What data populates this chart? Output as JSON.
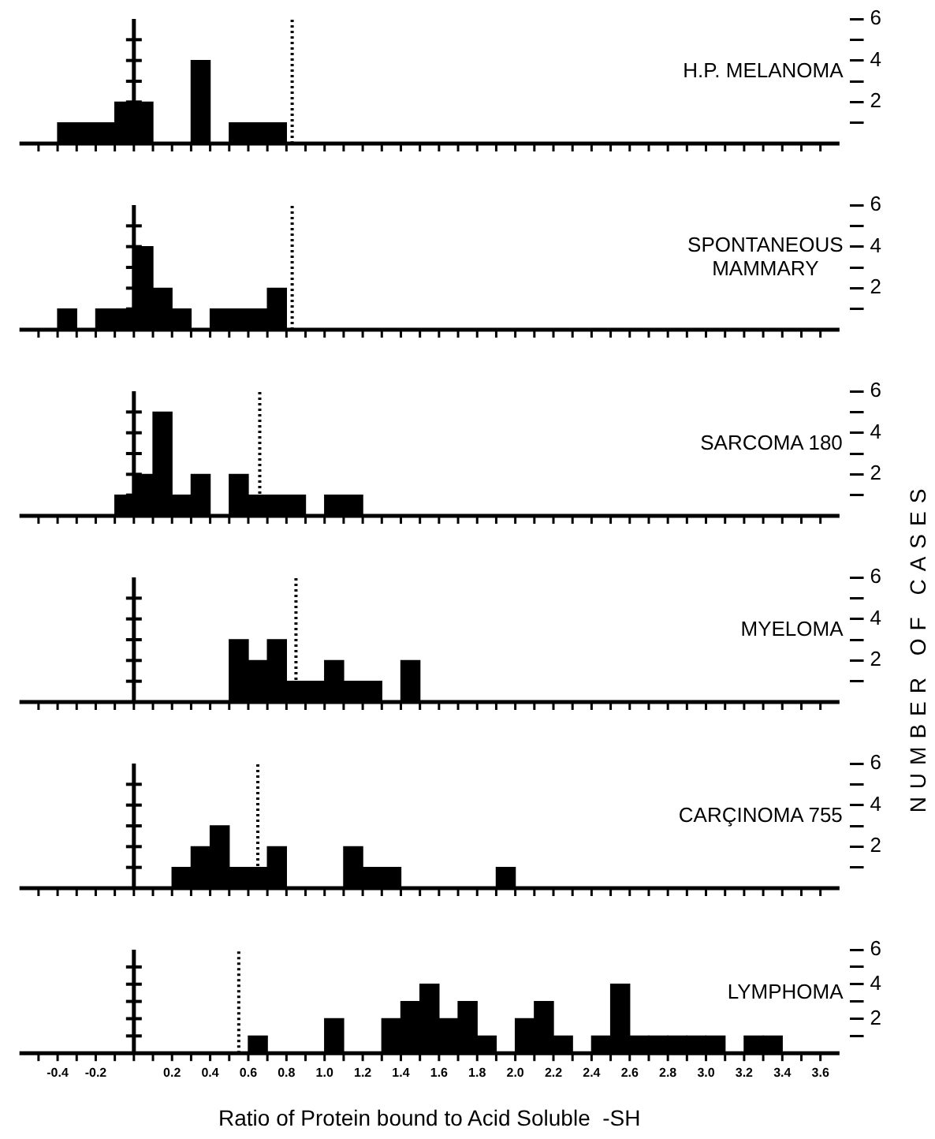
{
  "chart_data": [
    {
      "type": "histogram",
      "title": "H.P. MELANOMA",
      "bins": [
        -0.4,
        -0.3,
        -0.2,
        -0.1,
        0,
        0.1,
        0.2,
        0.3,
        0.4,
        0.5,
        0.6,
        0.7,
        0.8
      ],
      "values": [
        1,
        1,
        1,
        2,
        2,
        0,
        0,
        4,
        0,
        1,
        1,
        1
      ],
      "color": "#000000",
      "xlim": [
        -0.6,
        3.7
      ],
      "ylim": [
        0,
        6
      ],
      "xticks": [
        {
          "value": -0.5,
          "label": null
        },
        -0.4,
        {
          "value": -0.3,
          "label": null
        },
        -0.2,
        {
          "value": -0.1,
          "label": null
        },
        {
          "value": 0,
          "label": null
        },
        {
          "value": 0.1,
          "label": null
        },
        0.2,
        {
          "value": 0.3,
          "label": null
        },
        0.4,
        {
          "value": 0.5,
          "label": null
        },
        0.6,
        {
          "value": 0.7,
          "label": null
        },
        0.8,
        {
          "value": 0.9,
          "label": null
        },
        1,
        {
          "value": 1.1,
          "label": null
        },
        1.2,
        {
          "value": 1.3,
          "label": null
        },
        1.4,
        {
          "value": 1.5,
          "label": null
        },
        1.6,
        {
          "value": 1.7,
          "label": null
        },
        1.8,
        {
          "value": 1.9,
          "label": null
        },
        2,
        {
          "value": 2.1,
          "label": null
        },
        2.2,
        {
          "value": 2.3,
          "label": null
        },
        2.4,
        {
          "value": 2.5,
          "label": null
        },
        2.6,
        {
          "value": 2.7,
          "label": null
        },
        2.8,
        {
          "value": 2.9,
          "label": null
        },
        3,
        {
          "value": 3.1,
          "label": null
        },
        3.2,
        {
          "value": 3.3,
          "label": null
        },
        3.4,
        {
          "value": 3.5,
          "label": null
        },
        3.6
      ],
      "yticks": [
        {
          "value": 1,
          "label": null
        },
        2,
        {
          "value": 3,
          "label": null
        },
        4,
        {
          "value": 5,
          "label": null
        },
        6
      ],
      "tick_labels": "y",
      "grid": false,
      "legend": false,
      "ref_lines": [
        {
          "axis": "x",
          "value": 0,
          "line_style": "solid"
        },
        {
          "axis": "x",
          "value": 0.83,
          "line_style": "dotted"
        }
      ]
    },
    {
      "type": "histogram",
      "title": "SPONTANEOUS MAMMARY",
      "bins": [
        -0.4,
        -0.3,
        -0.2,
        -0.1,
        0,
        0.1,
        0.2,
        0.3,
        0.4,
        0.5,
        0.6,
        0.7,
        0.8
      ],
      "values": [
        1,
        0,
        1,
        1,
        4,
        2,
        1,
        0,
        1,
        1,
        1,
        2
      ],
      "color": "#000000",
      "xlim": [
        -0.6,
        3.7
      ],
      "ylim": [
        0,
        6
      ],
      "xticks": [
        {
          "value": -0.5,
          "label": null
        },
        -0.4,
        {
          "value": -0.3,
          "label": null
        },
        -0.2,
        {
          "value": -0.1,
          "label": null
        },
        {
          "value": 0,
          "label": null
        },
        {
          "value": 0.1,
          "label": null
        },
        0.2,
        {
          "value": 0.3,
          "label": null
        },
        0.4,
        {
          "value": 0.5,
          "label": null
        },
        0.6,
        {
          "value": 0.7,
          "label": null
        },
        0.8,
        {
          "value": 0.9,
          "label": null
        },
        1,
        {
          "value": 1.1,
          "label": null
        },
        1.2,
        {
          "value": 1.3,
          "label": null
        },
        1.4,
        {
          "value": 1.5,
          "label": null
        },
        1.6,
        {
          "value": 1.7,
          "label": null
        },
        1.8,
        {
          "value": 1.9,
          "label": null
        },
        2,
        {
          "value": 2.1,
          "label": null
        },
        2.2,
        {
          "value": 2.3,
          "label": null
        },
        2.4,
        {
          "value": 2.5,
          "label": null
        },
        2.6,
        {
          "value": 2.7,
          "label": null
        },
        2.8,
        {
          "value": 2.9,
          "label": null
        },
        3,
        {
          "value": 3.1,
          "label": null
        },
        3.2,
        {
          "value": 3.3,
          "label": null
        },
        3.4,
        {
          "value": 3.5,
          "label": null
        },
        3.6
      ],
      "yticks": [
        {
          "value": 1,
          "label": null
        },
        2,
        {
          "value": 3,
          "label": null
        },
        4,
        {
          "value": 5,
          "label": null
        },
        6
      ],
      "tick_labels": "y",
      "grid": false,
      "legend": false,
      "ref_lines": [
        {
          "axis": "x",
          "value": 0,
          "line_style": "solid"
        },
        {
          "axis": "x",
          "value": 0.83,
          "line_style": "dotted"
        }
      ]
    },
    {
      "type": "histogram",
      "title": "SARCOMA 180",
      "bins": [
        -0.1,
        0,
        0.1,
        0.2,
        0.3,
        0.4,
        0.5,
        0.6,
        0.7,
        0.8,
        0.9,
        1.0,
        1.1,
        1.2
      ],
      "values": [
        1,
        2,
        5,
        1,
        2,
        0,
        2,
        1,
        1,
        1,
        0,
        1,
        1
      ],
      "color": "#000000",
      "xlim": [
        -0.6,
        3.7
      ],
      "ylim": [
        0,
        6
      ],
      "xticks": [
        {
          "value": -0.5,
          "label": null
        },
        -0.4,
        {
          "value": -0.3,
          "label": null
        },
        -0.2,
        {
          "value": -0.1,
          "label": null
        },
        {
          "value": 0,
          "label": null
        },
        {
          "value": 0.1,
          "label": null
        },
        0.2,
        {
          "value": 0.3,
          "label": null
        },
        0.4,
        {
          "value": 0.5,
          "label": null
        },
        0.6,
        {
          "value": 0.7,
          "label": null
        },
        0.8,
        {
          "value": 0.9,
          "label": null
        },
        1,
        {
          "value": 1.1,
          "label": null
        },
        1.2,
        {
          "value": 1.3,
          "label": null
        },
        1.4,
        {
          "value": 1.5,
          "label": null
        },
        1.6,
        {
          "value": 1.7,
          "label": null
        },
        1.8,
        {
          "value": 1.9,
          "label": null
        },
        2,
        {
          "value": 2.1,
          "label": null
        },
        2.2,
        {
          "value": 2.3,
          "label": null
        },
        2.4,
        {
          "value": 2.5,
          "label": null
        },
        2.6,
        {
          "value": 2.7,
          "label": null
        },
        2.8,
        {
          "value": 2.9,
          "label": null
        },
        3,
        {
          "value": 3.1,
          "label": null
        },
        3.2,
        {
          "value": 3.3,
          "label": null
        },
        3.4,
        {
          "value": 3.5,
          "label": null
        },
        3.6
      ],
      "yticks": [
        {
          "value": 1,
          "label": null
        },
        2,
        {
          "value": 3,
          "label": null
        },
        4,
        {
          "value": 5,
          "label": null
        },
        6
      ],
      "tick_labels": "y",
      "grid": false,
      "legend": false,
      "ref_lines": [
        {
          "axis": "x",
          "value": 0,
          "line_style": "solid"
        },
        {
          "axis": "x",
          "value": 0.66,
          "line_style": "dotted"
        }
      ]
    },
    {
      "type": "histogram",
      "title": "MYELOMA",
      "ylabel": "NUMBER OF CASES",
      "bins": [
        0.5,
        0.6,
        0.7,
        0.8,
        0.9,
        1.0,
        1.1,
        1.2,
        1.3,
        1.4,
        1.5
      ],
      "values": [
        3,
        2,
        3,
        1,
        1,
        2,
        1,
        1,
        0,
        2
      ],
      "color": "#000000",
      "xlim": [
        -0.6,
        3.7
      ],
      "ylim": [
        0,
        6
      ],
      "xticks": [
        {
          "value": -0.5,
          "label": null
        },
        -0.4,
        {
          "value": -0.3,
          "label": null
        },
        -0.2,
        {
          "value": -0.1,
          "label": null
        },
        {
          "value": 0,
          "label": null
        },
        {
          "value": 0.1,
          "label": null
        },
        0.2,
        {
          "value": 0.3,
          "label": null
        },
        0.4,
        {
          "value": 0.5,
          "label": null
        },
        0.6,
        {
          "value": 0.7,
          "label": null
        },
        0.8,
        {
          "value": 0.9,
          "label": null
        },
        1,
        {
          "value": 1.1,
          "label": null
        },
        1.2,
        {
          "value": 1.3,
          "label": null
        },
        1.4,
        {
          "value": 1.5,
          "label": null
        },
        1.6,
        {
          "value": 1.7,
          "label": null
        },
        1.8,
        {
          "value": 1.9,
          "label": null
        },
        2,
        {
          "value": 2.1,
          "label": null
        },
        2.2,
        {
          "value": 2.3,
          "label": null
        },
        2.4,
        {
          "value": 2.5,
          "label": null
        },
        2.6,
        {
          "value": 2.7,
          "label": null
        },
        2.8,
        {
          "value": 2.9,
          "label": null
        },
        3,
        {
          "value": 3.1,
          "label": null
        },
        3.2,
        {
          "value": 3.3,
          "label": null
        },
        3.4,
        {
          "value": 3.5,
          "label": null
        },
        3.6
      ],
      "yticks": [
        {
          "value": 1,
          "label": null
        },
        2,
        {
          "value": 3,
          "label": null
        },
        4,
        {
          "value": 5,
          "label": null
        },
        6
      ],
      "tick_labels": "y",
      "grid": false,
      "legend": false,
      "ref_lines": [
        {
          "axis": "x",
          "value": 0,
          "line_style": "solid"
        },
        {
          "axis": "x",
          "value": 0.85,
          "line_style": "dotted"
        }
      ]
    },
    {
      "type": "histogram",
      "title": "CARÇINOMA 755",
      "bins": [
        0.2,
        0.3,
        0.4,
        0.5,
        0.6,
        0.7,
        0.8,
        0.9,
        1.0,
        1.1,
        1.2,
        1.3,
        1.4,
        1.5,
        1.6,
        1.7,
        1.8,
        1.9,
        2.0
      ],
      "values": [
        1,
        2,
        3,
        1,
        1,
        2,
        0,
        0,
        0,
        2,
        1,
        1,
        0,
        0,
        0,
        0,
        0,
        1
      ],
      "color": "#000000",
      "xlim": [
        -0.6,
        3.7
      ],
      "ylim": [
        0,
        6
      ],
      "xticks": [
        {
          "value": -0.5,
          "label": null
        },
        -0.4,
        {
          "value": -0.3,
          "label": null
        },
        -0.2,
        {
          "value": -0.1,
          "label": null
        },
        {
          "value": 0,
          "label": null
        },
        {
          "value": 0.1,
          "label": null
        },
        0.2,
        {
          "value": 0.3,
          "label": null
        },
        0.4,
        {
          "value": 0.5,
          "label": null
        },
        0.6,
        {
          "value": 0.7,
          "label": null
        },
        0.8,
        {
          "value": 0.9,
          "label": null
        },
        1,
        {
          "value": 1.1,
          "label": null
        },
        1.2,
        {
          "value": 1.3,
          "label": null
        },
        1.4,
        {
          "value": 1.5,
          "label": null
        },
        1.6,
        {
          "value": 1.7,
          "label": null
        },
        1.8,
        {
          "value": 1.9,
          "label": null
        },
        2,
        {
          "value": 2.1,
          "label": null
        },
        2.2,
        {
          "value": 2.3,
          "label": null
        },
        2.4,
        {
          "value": 2.5,
          "label": null
        },
        2.6,
        {
          "value": 2.7,
          "label": null
        },
        2.8,
        {
          "value": 2.9,
          "label": null
        },
        3,
        {
          "value": 3.1,
          "label": null
        },
        3.2,
        {
          "value": 3.3,
          "label": null
        },
        3.4,
        {
          "value": 3.5,
          "label": null
        },
        3.6
      ],
      "yticks": [
        {
          "value": 1,
          "label": null
        },
        2,
        {
          "value": 3,
          "label": null
        },
        4,
        {
          "value": 5,
          "label": null
        },
        6
      ],
      "tick_labels": "y",
      "grid": false,
      "legend": false,
      "ref_lines": [
        {
          "axis": "x",
          "value": 0,
          "line_style": "solid"
        },
        {
          "axis": "x",
          "value": 0.65,
          "line_style": "dotted"
        }
      ]
    },
    {
      "type": "histogram",
      "title": "LYMPHOMA",
      "xlabel": "Ratio of Protein bound to Acid Soluble  -SH",
      "bins": [
        0.6,
        0.7,
        0.8,
        0.9,
        1.0,
        1.1,
        1.2,
        1.3,
        1.4,
        1.5,
        1.6,
        1.7,
        1.8,
        1.9,
        2.0,
        2.1,
        2.2,
        2.3,
        2.4,
        2.5,
        2.6,
        2.7,
        2.8,
        2.9,
        3.0,
        3.1,
        3.2,
        3.3,
        3.4
      ],
      "values": [
        1,
        0,
        0,
        0,
        2,
        0,
        0,
        2,
        3,
        4,
        2,
        3,
        1,
        0,
        2,
        3,
        1,
        0,
        1,
        4,
        1,
        1,
        1,
        1,
        1,
        0,
        1,
        1
      ],
      "color": "#000000",
      "xlim": [
        -0.6,
        3.7
      ],
      "ylim": [
        0,
        6
      ],
      "xticks": [
        {
          "value": -0.5,
          "label": null
        },
        -0.4,
        {
          "value": -0.3,
          "label": null
        },
        -0.2,
        {
          "value": -0.1,
          "label": null
        },
        {
          "value": 0,
          "label": null
        },
        {
          "value": 0.1,
          "label": null
        },
        0.2,
        {
          "value": 0.3,
          "label": null
        },
        0.4,
        {
          "value": 0.5,
          "label": null
        },
        0.6,
        {
          "value": 0.7,
          "label": null
        },
        0.8,
        {
          "value": 0.9,
          "label": null
        },
        {
          "value": 1,
          "label": "1.0"
        },
        {
          "value": 1.1,
          "label": null
        },
        1.2,
        {
          "value": 1.3,
          "label": null
        },
        1.4,
        {
          "value": 1.5,
          "label": null
        },
        1.6,
        {
          "value": 1.7,
          "label": null
        },
        1.8,
        {
          "value": 1.9,
          "label": null
        },
        {
          "value": 2,
          "label": "2.0"
        },
        {
          "value": 2.1,
          "label": null
        },
        2.2,
        {
          "value": 2.3,
          "label": null
        },
        2.4,
        {
          "value": 2.5,
          "label": null
        },
        2.6,
        {
          "value": 2.7,
          "label": null
        },
        2.8,
        {
          "value": 2.9,
          "label": null
        },
        {
          "value": 3,
          "label": "3.0"
        },
        {
          "value": 3.1,
          "label": null
        },
        3.2,
        {
          "value": 3.3,
          "label": null
        },
        3.4,
        {
          "value": 3.5,
          "label": null
        },
        3.6
      ],
      "yticks": [
        {
          "value": 1,
          "label": null
        },
        2,
        {
          "value": 3,
          "label": null
        },
        4,
        {
          "value": 5,
          "label": null
        },
        6
      ],
      "grid": false,
      "legend": false,
      "ref_lines": [
        {
          "axis": "x",
          "value": 0,
          "line_style": "solid"
        },
        {
          "axis": "x",
          "value": 0.55,
          "line_style": "dotted"
        }
      ]
    }
  ]
}
